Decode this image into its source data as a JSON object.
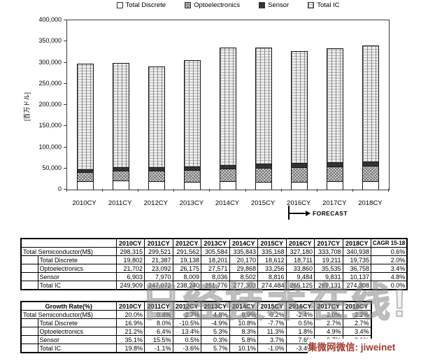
{
  "chart": {
    "y_axis": {
      "title": "[百万ドル]",
      "ticks": [
        "400,000",
        "350,000",
        "300,000",
        "250,000",
        "200,000",
        "150,000",
        "100,000",
        "50,000",
        "0"
      ]
    },
    "forecast_label": "FORECAST"
  },
  "chart_data": {
    "type": "bar",
    "stacked": true,
    "title": "",
    "xlabel": "",
    "ylabel": "[百万ドル]",
    "ylim": [
      0,
      400000
    ],
    "legend_position": "top",
    "grid": false,
    "categories": [
      "2010CY",
      "2011CY",
      "2012CY",
      "2013CY",
      "2014CY",
      "2015CY",
      "2016CY",
      "2017CY",
      "2018CY"
    ],
    "series": [
      {
        "name": "Total Discrete",
        "values": [
          19802,
          21387,
          19138,
          18201,
          20170,
          18612,
          18711,
          19211,
          19735
        ]
      },
      {
        "name": "Optoelectronics",
        "values": [
          21702,
          23092,
          26175,
          27571,
          29868,
          33256,
          33860,
          35535,
          36758
        ]
      },
      {
        "name": "Sensor",
        "values": [
          6903,
          7970,
          8009,
          8036,
          8502,
          8816,
          9484,
          9831,
          10137
        ]
      },
      {
        "name": "Total IC",
        "values": [
          249909,
          247072,
          238240,
          251776,
          277303,
          274484,
          265125,
          269131,
          274308
        ]
      }
    ],
    "totals": [
      298315,
      299521,
      291562,
      305584,
      335843,
      335168,
      327180,
      333708,
      340938
    ]
  },
  "tables": {
    "values": {
      "year_headers": [
        "2010CY",
        "2011CY",
        "2012CY",
        "2013CY",
        "2014CY",
        "2015CY",
        "2016CY",
        "2017CY",
        "2018CY"
      ],
      "cagr_header": "CAGR\n15-18",
      "rows": [
        {
          "label": "Total Semiconductor(M$)",
          "main": true,
          "cells": [
            "298,315",
            "299,521",
            "291,562",
            "305,584",
            "335,843",
            "335,168",
            "327,180",
            "333,708",
            "340,938",
            "0.6%"
          ]
        },
        {
          "label": "Total Discrete",
          "main": false,
          "cells": [
            "19,802",
            "21,387",
            "19,138",
            "18,201",
            "20,170",
            "18,612",
            "18,711",
            "19,211",
            "19,735",
            "2.0%"
          ]
        },
        {
          "label": "Optoelectronics",
          "main": false,
          "cells": [
            "21,702",
            "23,092",
            "26,175",
            "27,571",
            "29,868",
            "33,256",
            "33,860",
            "35,535",
            "36,758",
            "3.4%"
          ]
        },
        {
          "label": "Sensor",
          "main": false,
          "cells": [
            "6,903",
            "7,970",
            "8,009",
            "8,036",
            "8,502",
            "8,816",
            "9,484",
            "9,831",
            "10,137",
            "4.8%"
          ]
        },
        {
          "label": "Total IC",
          "main": false,
          "cells": [
            "249,909",
            "247,072",
            "238,240",
            "251,776",
            "277,303",
            "274,484",
            "265,125",
            "269,131",
            "274,308",
            "0.0%"
          ]
        }
      ]
    },
    "growth": {
      "title_cell": "Growth Rate(%)",
      "year_headers": [
        "2010CY",
        "2011CY",
        "2012CY",
        "2013CY",
        "2014CY",
        "2015CY",
        "2016CY",
        "2017CY",
        "2018CY"
      ],
      "rows": [
        {
          "label": "Total Semiconductor(M$)",
          "main": true,
          "cells": [
            "20.0%",
            "0.4%",
            "-2.7%",
            "4.8%",
            "9.9%",
            "-0.2%",
            "-2.4%",
            "2.0%",
            "2.2%"
          ]
        },
        {
          "label": "Total Discrete",
          "main": false,
          "cells": [
            "16.9%",
            "8.0%",
            "-10.5%",
            "-4.9%",
            "10.8%",
            "-7.7%",
            "0.5%",
            "2.7%",
            "2.7%"
          ]
        },
        {
          "label": "Optoelectronics",
          "main": false,
          "cells": [
            "21.2%",
            "6.4%",
            "13.4%",
            "5.3%",
            "8.3%",
            "11.3%",
            "1.8%",
            "4.9%",
            "3.4%"
          ]
        },
        {
          "label": "Sensor",
          "main": false,
          "cells": [
            "35.1%",
            "15.5%",
            "0.5%",
            "0.3%",
            "5.8%",
            "3.7%",
            "7.6%",
            "3.7%",
            "3.1%"
          ]
        },
        {
          "label": "Total IC",
          "main": false,
          "cells": [
            "19.8%",
            "-1.1%",
            "-3.6%",
            "5.7%",
            "10.1%",
            "-1.0%",
            "-3.4%",
            "",
            ""
          ]
        }
      ]
    }
  },
  "watermarks": {
    "outline_text": "日经技术在线!",
    "red_text": "集微网微信: jiweinet"
  }
}
